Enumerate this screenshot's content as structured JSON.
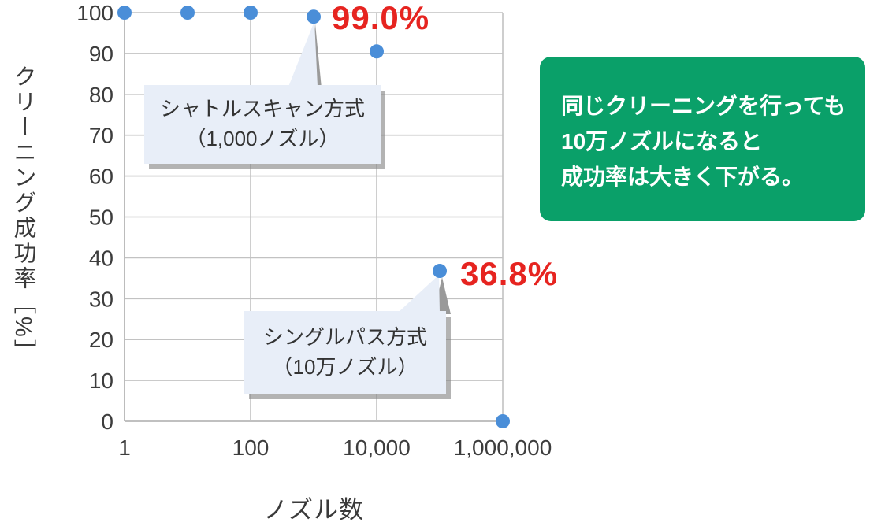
{
  "chart_data": {
    "type": "scatter",
    "title": "",
    "xlabel": "ノズル数",
    "ylabel": "クリーニング成功率［%］",
    "x_scale": "log",
    "x": [
      1,
      10,
      100,
      1000,
      10000,
      100000,
      1000000
    ],
    "y": [
      100,
      100,
      100,
      99.0,
      90.5,
      36.8,
      0
    ],
    "xlim_log": [
      0,
      6
    ],
    "ylim": [
      0,
      100
    ],
    "yticks": [
      0,
      10,
      20,
      30,
      40,
      50,
      60,
      70,
      80,
      90,
      100
    ],
    "xticks": [
      1,
      100,
      10000,
      1000000
    ],
    "xtick_labels": [
      "1",
      "100",
      "10,000",
      "1,000,000"
    ],
    "grid": true,
    "legend": "none",
    "point_color": "#4a8ed8",
    "annotations": [
      {
        "text": "99.0%",
        "x": 1000,
        "y": 99.0
      },
      {
        "text": "36.8%",
        "x": 100000,
        "y": 36.8
      }
    ]
  },
  "callouts": [
    {
      "line1": "シャトルスキャン方式",
      "line2": "（1,000ノズル）"
    },
    {
      "line1": "シングルパス方式",
      "line2": "（10万ノズル）"
    }
  ],
  "note": {
    "line1": "同じクリーニングを行っても",
    "line2": "10万ノズルになると",
    "line3": "成功率は大きく下がる。"
  },
  "colors": {
    "annotation_red": "#e62420",
    "note_green": "#0aa069",
    "callout_bg": "#e8eef8",
    "dot_blue": "#4a8ed8",
    "grid_gray": "#c2c2c2"
  }
}
